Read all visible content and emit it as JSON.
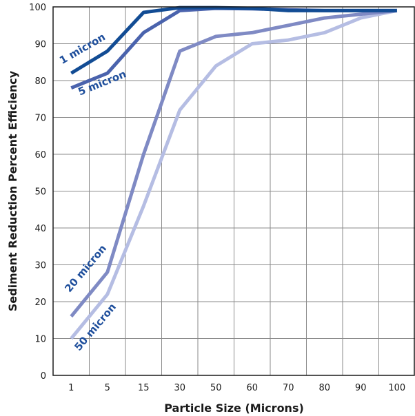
{
  "chart_data": {
    "type": "line",
    "title": "",
    "xlabel": "Particle Size (Microns)",
    "ylabel": "Sediment Reduction Percent Efficiency",
    "categories": [
      "1",
      "5",
      "15",
      "30",
      "50",
      "60",
      "70",
      "80",
      "90",
      "100"
    ],
    "yticks": [
      "0",
      "10",
      "20",
      "30",
      "40",
      "50",
      "60",
      "70",
      "80",
      "90",
      "100"
    ],
    "ylim": [
      0,
      100
    ],
    "grid": true,
    "legend": "none",
    "series": [
      {
        "name": "1 micron",
        "color": "#124c94",
        "values": [
          82,
          88,
          98.5,
          99.8,
          99.8,
          99.6,
          99,
          99,
          99,
          99
        ]
      },
      {
        "name": "5 micron",
        "color": "#4a63ad",
        "values": [
          78,
          82,
          93,
          99,
          99.6,
          99.5,
          99.2,
          99,
          99,
          99
        ]
      },
      {
        "name": "20 micron",
        "color": "#7f8ac4",
        "values": [
          16,
          28,
          60,
          88,
          92,
          93,
          95,
          97,
          98,
          99
        ]
      },
      {
        "name": "50 micron",
        "color": "#b5bde3",
        "values": [
          10,
          22,
          46,
          72,
          84,
          90,
          91,
          93,
          97,
          99
        ]
      }
    ]
  }
}
